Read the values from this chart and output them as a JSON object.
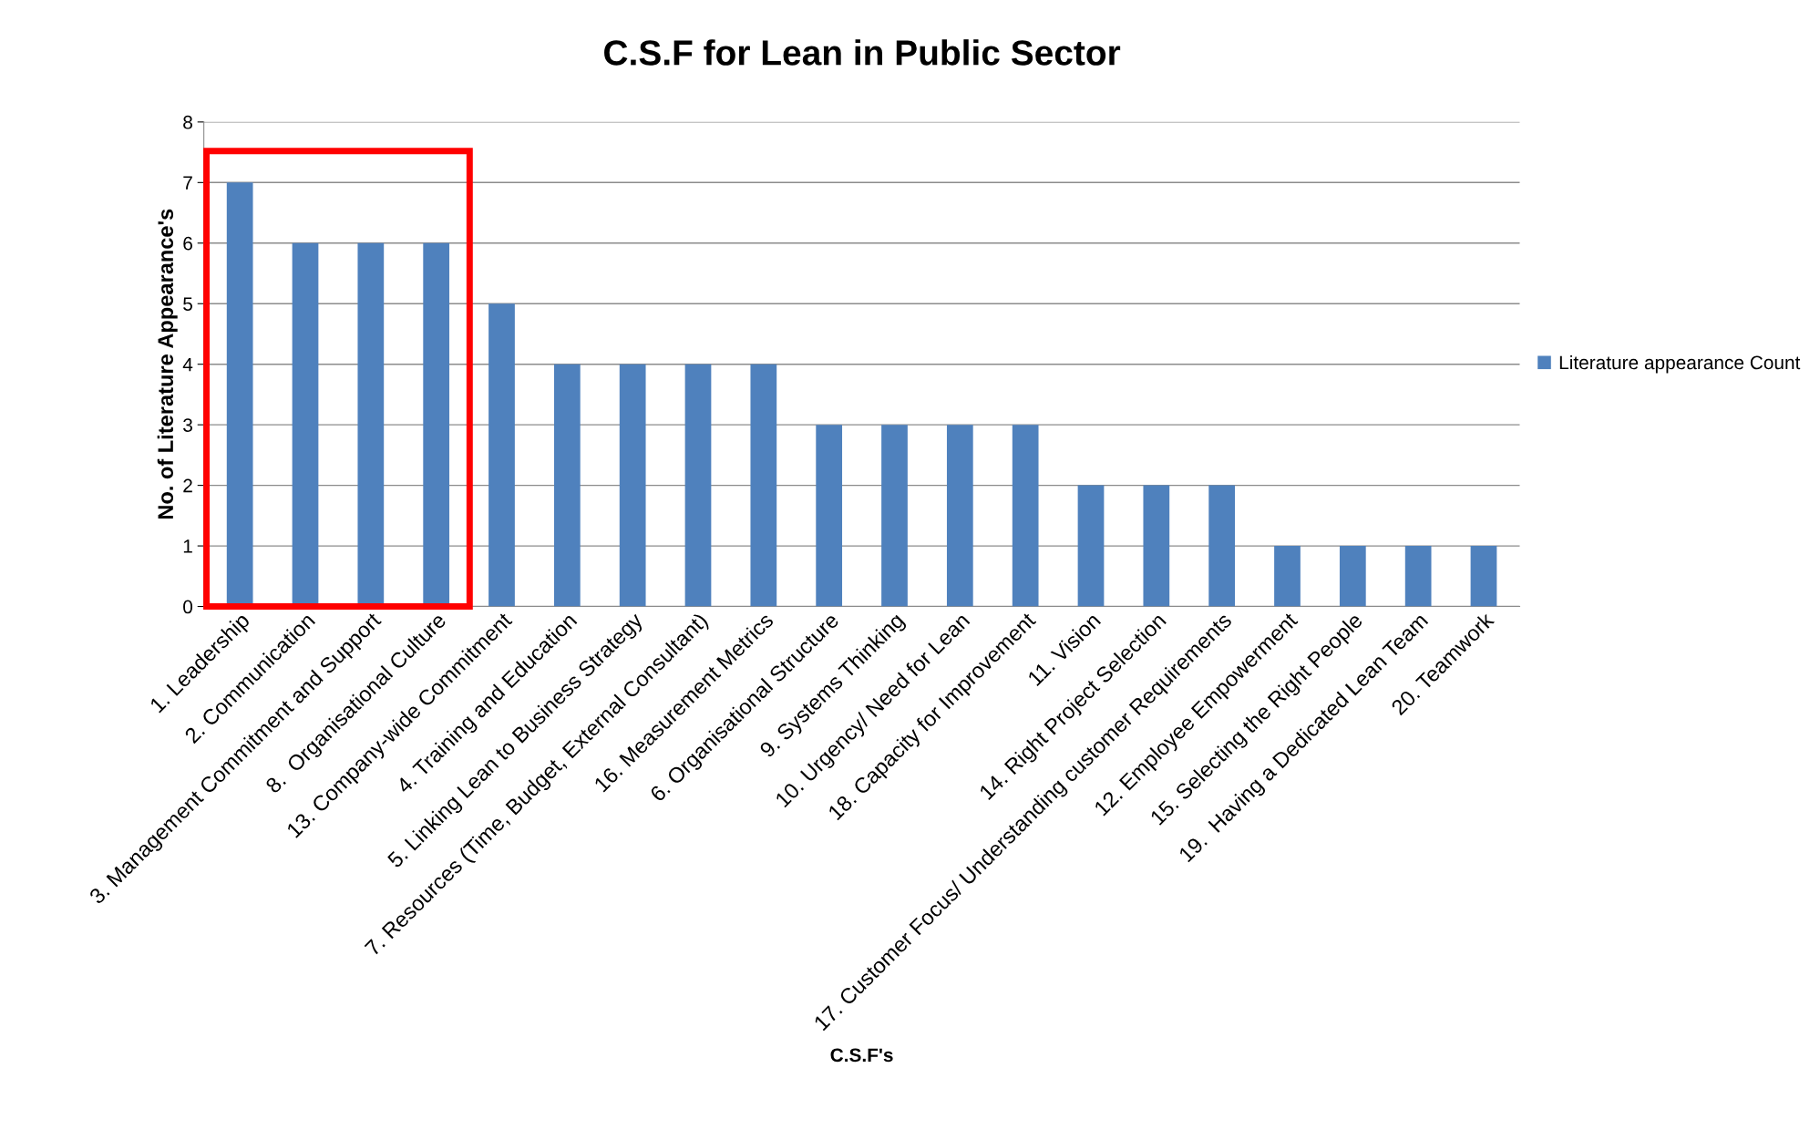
{
  "chart_data": {
    "type": "bar",
    "title": "C.S.F for Lean in Public Sector",
    "xlabel": "C.S.F's",
    "ylabel": "No. of Literature Appearance's",
    "categories": [
      "1. Leadership",
      "2. Communication",
      "3. Management Commitment and Support",
      "8.  Organisational Culture",
      "13. Company-wide Commitment",
      "4. Training and Education",
      "5. Linking Lean to Business Strategy",
      "7. Resources (Time, Budget, External Consultant)",
      "16. Measurement Metrics",
      "6. Organisational Structure",
      "9. Systems Thinking",
      "10. Urgency/ Need for Lean",
      "18. Capacity for Improvement",
      "11. Vision",
      "14. Right Project Selection",
      "17. Customer Focus/ Understanding customer Requirements",
      "12. Employee Empowerment",
      "15. Selecting the Right People",
      "19.  Having a Dedicated Lean Team",
      "20. Teamwork"
    ],
    "series": [
      {
        "name": "Literature appearance Count",
        "color": "#4f81bd",
        "values": [
          7,
          6,
          6,
          6,
          5,
          4,
          4,
          4,
          4,
          3,
          3,
          3,
          3,
          2,
          2,
          2,
          1,
          1,
          1,
          1
        ]
      }
    ],
    "ylim": [
      0,
      8
    ],
    "yticks": [
      0,
      1,
      2,
      3,
      4,
      5,
      6,
      7,
      8
    ],
    "grid": "y",
    "legend": "right"
  }
}
